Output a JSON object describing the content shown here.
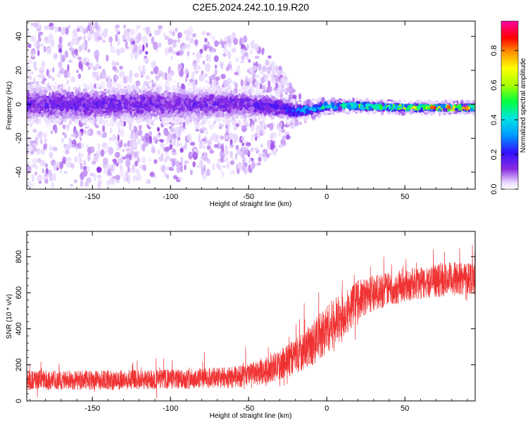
{
  "figure": {
    "title": "C2E5.2024.242.10.19.R20"
  },
  "colors": {
    "snr_line": "#f03232",
    "axis": "#000000",
    "background": "#ffffff"
  },
  "chart_data": [
    {
      "type": "heatmap",
      "title": "C2E5.2024.242.10.19.R20",
      "xlabel": "Height of straight line (km)",
      "ylabel": "Frequency (Hz)",
      "xlim": [
        -192,
        95
      ],
      "ylim": [
        -50,
        49
      ],
      "x_ticks": [
        -150,
        -100,
        -50,
        0,
        50
      ],
      "y_ticks": [
        -40,
        -20,
        0,
        20,
        40
      ],
      "colorbar": {
        "label": "Normalized spectral amplitude",
        "range": [
          0,
          0.97
        ],
        "ticks": [
          "0.0",
          "0.2",
          "0.4",
          "0.6",
          "0.8"
        ],
        "tick_values": [
          0,
          0.2,
          0.4,
          0.6,
          0.8
        ],
        "colormap": "rainbow (white-purple-blue-cyan-green-yellow-red-magenta)"
      },
      "profile": {
        "x": [
          -192,
          -150,
          -100,
          -50,
          -30,
          -20,
          -10,
          0,
          10,
          20,
          50,
          70,
          95
        ],
        "center_hz": [
          0,
          0,
          0,
          0,
          -2,
          -4,
          -3,
          -1,
          -1,
          -1,
          -2,
          -2,
          -2
        ],
        "core_halfwidth_hz": [
          8,
          8,
          8,
          6,
          5,
          3,
          2,
          1.5,
          1.5,
          1.5,
          1.2,
          1,
          1
        ],
        "peak_amplitude": [
          0.15,
          0.15,
          0.14,
          0.15,
          0.18,
          0.3,
          0.4,
          0.45,
          0.45,
          0.5,
          0.6,
          0.75,
          0.85
        ],
        "scatter_extent_hz": [
          48,
          48,
          45,
          40,
          25,
          10,
          5,
          4,
          3,
          3,
          3,
          3,
          3
        ]
      }
    },
    {
      "type": "line",
      "xlabel": "Height of straight line (km)",
      "ylabel": "SNR (10 * v/v)",
      "xlim": [
        -192,
        95
      ],
      "ylim": [
        0,
        940
      ],
      "x_ticks": [
        -150,
        -100,
        -50,
        0,
        50
      ],
      "y_ticks": [
        0,
        200,
        400,
        600,
        800
      ],
      "series_envelope": {
        "x": [
          -192,
          -150,
          -100,
          -60,
          -40,
          -30,
          -20,
          -10,
          0,
          10,
          20,
          30,
          50,
          70,
          95
        ],
        "mean": [
          115,
          115,
          120,
          130,
          160,
          200,
          250,
          310,
          400,
          470,
          560,
          600,
          640,
          665,
          690
        ],
        "spread": [
          55,
          55,
          55,
          60,
          70,
          80,
          100,
          120,
          140,
          130,
          110,
          100,
          90,
          90,
          100
        ]
      }
    }
  ]
}
